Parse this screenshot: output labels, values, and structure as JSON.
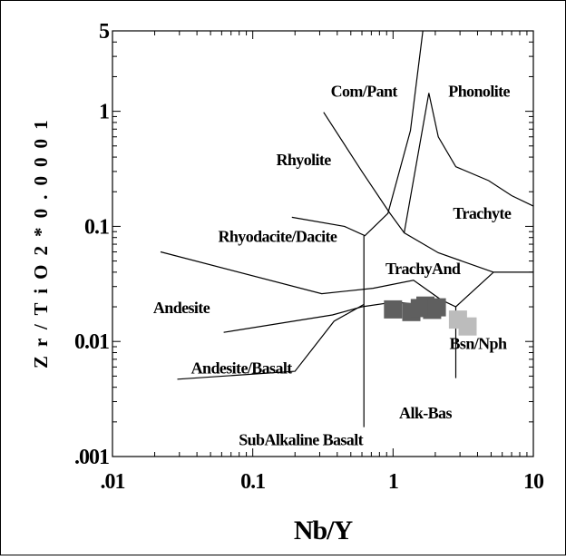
{
  "chart_data": {
    "type": "scatter",
    "title": "",
    "xlabel": "Nb/Y",
    "ylabel": "Z r / T i O 2 * 0 . 0 0 0 1",
    "x_scale": "log",
    "y_scale": "log",
    "xlim": [
      0.01,
      10
    ],
    "ylim": [
      0.001,
      5
    ],
    "grid": false,
    "legend": "none",
    "x_ticks": [
      {
        "value": 0.01,
        "label": ".01"
      },
      {
        "value": 0.1,
        "label": "0.1"
      },
      {
        "value": 1,
        "label": "1"
      },
      {
        "value": 10,
        "label": "10"
      }
    ],
    "y_ticks": [
      {
        "value": 0.001,
        "label": ".001"
      },
      {
        "value": 0.01,
        "label": "0.01"
      },
      {
        "value": 0.1,
        "label": "0.1"
      },
      {
        "value": 1,
        "label": "1"
      },
      {
        "value": 5,
        "label": "5"
      }
    ],
    "field_labels": [
      {
        "text": "Com/Pant",
        "x": 0.62,
        "y": 1.5
      },
      {
        "text": "Phonolite",
        "x": 4.1,
        "y": 1.5
      },
      {
        "text": "Rhyolite",
        "x": 0.23,
        "y": 0.38
      },
      {
        "text": "Trachyte",
        "x": 4.3,
        "y": 0.13
      },
      {
        "text": "Rhyodacite/Dacite",
        "x": 0.15,
        "y": 0.082
      },
      {
        "text": "TrachyAnd",
        "x": 1.63,
        "y": 0.043
      },
      {
        "text": "Andesite",
        "x": 0.031,
        "y": 0.0196
      },
      {
        "text": "Bsn/Nph",
        "x": 4.03,
        "y": 0.0096
      },
      {
        "text": "Andesite/Basalt",
        "x": 0.083,
        "y": 0.0059
      },
      {
        "text": "Alk-Bas",
        "x": 1.7,
        "y": 0.0024
      },
      {
        "text": "SubAlkaline Basalt",
        "x": 0.22,
        "y": 0.0014
      }
    ],
    "boundaries": [
      [
        [
          0.029,
          0.0047
        ],
        [
          0.2,
          0.0055
        ],
        [
          0.38,
          0.015
        ],
        [
          0.62,
          0.021
        ]
      ],
      [
        [
          0.062,
          0.012
        ],
        [
          0.37,
          0.017
        ],
        [
          0.6,
          0.02
        ],
        [
          1.02,
          0.022
        ],
        [
          2.3,
          0.02
        ]
      ],
      [
        [
          0.022,
          0.06
        ],
        [
          0.31,
          0.026
        ],
        [
          0.72,
          0.029
        ],
        [
          1.4,
          0.034
        ],
        [
          2.2,
          0.023
        ],
        [
          2.8,
          0.02
        ],
        [
          5.2,
          0.04
        ]
      ],
      [
        [
          5.2,
          0.04
        ],
        [
          10,
          0.04
        ]
      ],
      [
        [
          0.19,
          0.12
        ],
        [
          0.45,
          0.1
        ],
        [
          0.63,
          0.083
        ],
        [
          0.92,
          0.13
        ],
        [
          1.33,
          0.68
        ],
        [
          1.63,
          5
        ]
      ],
      [
        [
          0.32,
          0.98
        ],
        [
          0.6,
          0.3
        ],
        [
          0.95,
          0.13
        ],
        [
          1.2,
          0.088
        ],
        [
          2.1,
          0.059
        ],
        [
          5.2,
          0.04
        ]
      ],
      [
        [
          1.2,
          0.088
        ],
        [
          1.8,
          1.44
        ],
        [
          2.1,
          0.6
        ],
        [
          2.8,
          0.33
        ],
        [
          4.8,
          0.25
        ],
        [
          7,
          0.185
        ],
        [
          10,
          0.15
        ]
      ],
      [
        [
          0.62,
          0.083
        ],
        [
          0.62,
          0.0018
        ]
      ],
      [
        [
          2.8,
          0.0048
        ],
        [
          2.8,
          0.02
        ]
      ]
    ],
    "series": [
      {
        "color": "#5f5f5f",
        "marker": "square",
        "points": [
          {
            "x": 1.0,
            "y": 0.019
          },
          {
            "x": 1.35,
            "y": 0.018
          },
          {
            "x": 1.55,
            "y": 0.0195
          },
          {
            "x": 1.7,
            "y": 0.0205
          },
          {
            "x": 1.9,
            "y": 0.0188
          },
          {
            "x": 2.05,
            "y": 0.0198
          }
        ]
      },
      {
        "color": "#bcbcbc",
        "marker": "square",
        "points": [
          {
            "x": 2.9,
            "y": 0.0155
          },
          {
            "x": 3.4,
            "y": 0.0135
          }
        ]
      }
    ]
  }
}
